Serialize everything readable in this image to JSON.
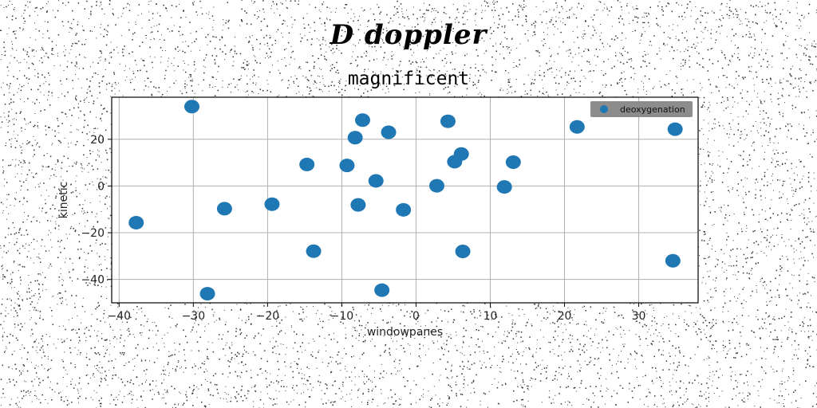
{
  "chart_data": {
    "type": "scatter",
    "suptitle": "D doppler",
    "title": "magnificent",
    "xlabel": "windowpanes",
    "ylabel": "kinetic",
    "xlim": [
      -41,
      38
    ],
    "ylim": [
      -50,
      38
    ],
    "xticks": [
      -40,
      -30,
      -20,
      -10,
      0,
      10,
      20,
      30
    ],
    "yticks": [
      -40,
      -20,
      0,
      20
    ],
    "grid": true,
    "legend_position": "top-right",
    "point_color": "#1f77b4",
    "series": [
      {
        "name": "deoxygenation",
        "points": [
          {
            "x": -30.2,
            "y": 34.0
          },
          {
            "x": -37.7,
            "y": -15.7
          },
          {
            "x": -28.1,
            "y": -46.1
          },
          {
            "x": -25.8,
            "y": -9.7
          },
          {
            "x": -19.4,
            "y": -7.8
          },
          {
            "x": -14.7,
            "y": 9.2
          },
          {
            "x": -13.8,
            "y": -27.9
          },
          {
            "x": -9.3,
            "y": 8.8
          },
          {
            "x": -8.2,
            "y": 20.7
          },
          {
            "x": -7.8,
            "y": -8.1
          },
          {
            "x": -7.2,
            "y": 28.2
          },
          {
            "x": -5.4,
            "y": 2.2
          },
          {
            "x": -4.6,
            "y": -44.6
          },
          {
            "x": -3.7,
            "y": 23.0
          },
          {
            "x": -1.7,
            "y": -10.2
          },
          {
            "x": 2.8,
            "y": 0.1
          },
          {
            "x": 4.3,
            "y": 27.7
          },
          {
            "x": 5.2,
            "y": 10.4
          },
          {
            "x": 6.1,
            "y": 13.7
          },
          {
            "x": 6.3,
            "y": -28.0
          },
          {
            "x": 11.9,
            "y": -0.4
          },
          {
            "x": 13.1,
            "y": 10.2
          },
          {
            "x": 21.7,
            "y": 25.3
          },
          {
            "x": 34.6,
            "y": -32.0
          },
          {
            "x": 34.9,
            "y": 24.3
          }
        ]
      }
    ]
  }
}
